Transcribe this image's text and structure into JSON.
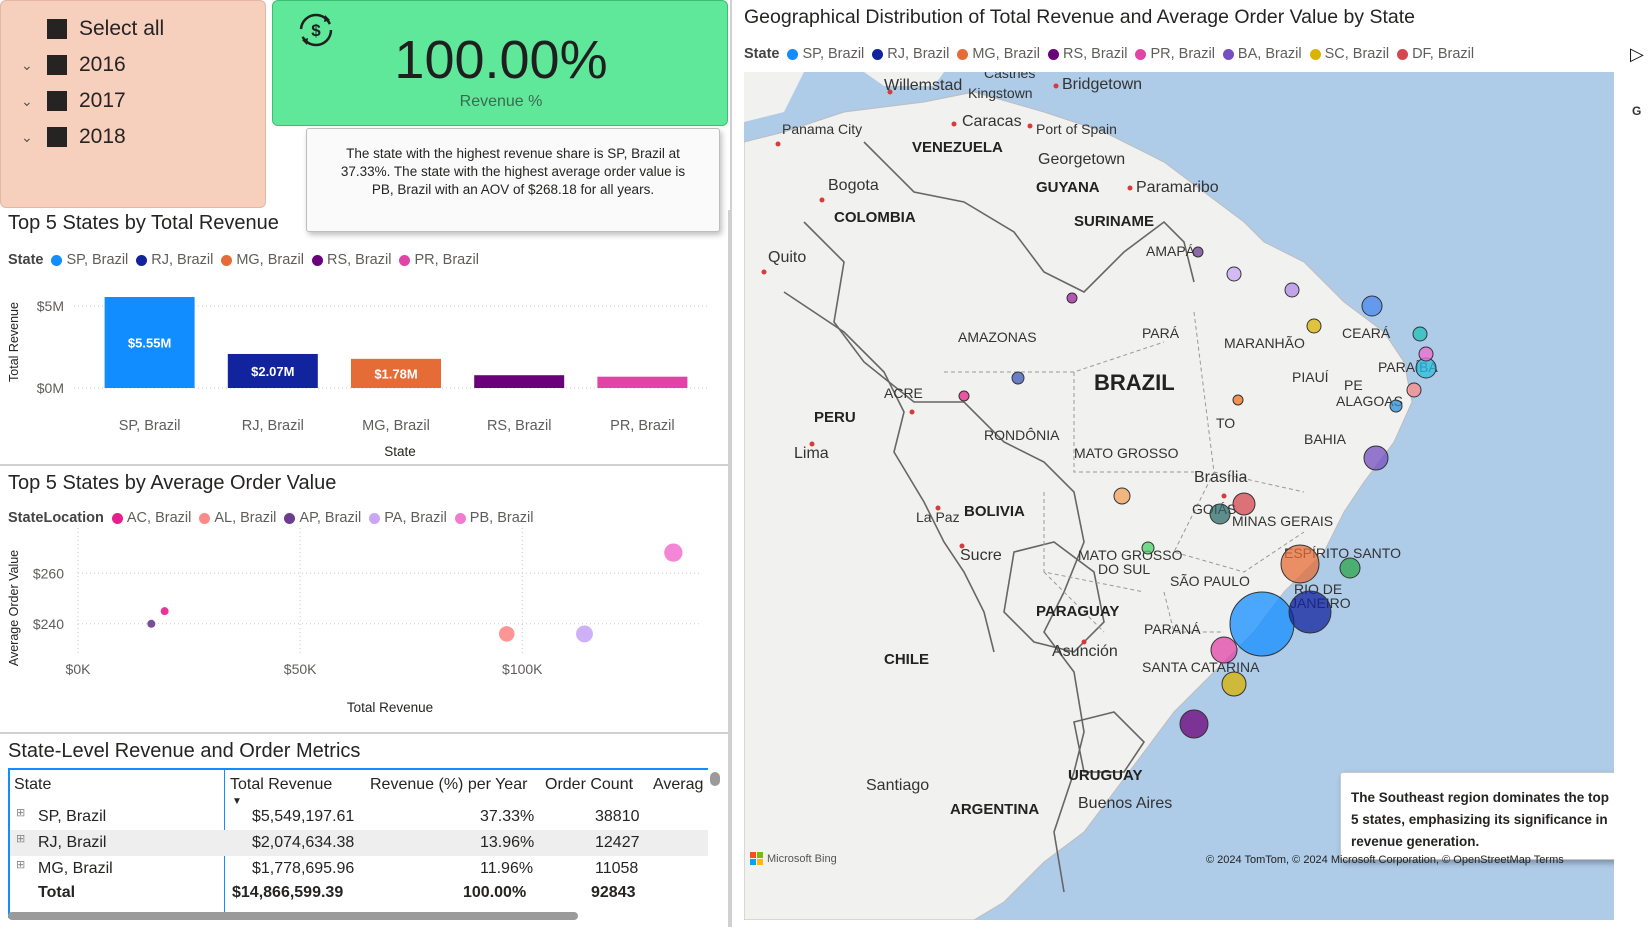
{
  "slicer": {
    "items": [
      {
        "label": "Select all",
        "expandable": false
      },
      {
        "label": "2016",
        "expandable": true
      },
      {
        "label": "2017",
        "expandable": true
      },
      {
        "label": "2018",
        "expandable": true
      }
    ]
  },
  "kpi": {
    "value": "100.00%",
    "label": "Revenue %",
    "icon": "currency-exchange-icon",
    "color": "#5fe89a"
  },
  "insight_top": "The state with the highest revenue share is SP, Brazil at 37.33%. The state with the highest average order value is PB, Brazil with an AOV of $268.18 for all years.",
  "bar_chart": {
    "title": "Top 5 States by Total Revenue",
    "legend_title": "State",
    "chart_data": {
      "type": "bar",
      "categories": [
        "SP, Brazil",
        "RJ, Brazil",
        "MG, Brazil",
        "RS, Brazil",
        "PR, Brazil"
      ],
      "values": [
        5549197.61,
        2074634.38,
        1778695.96,
        780000,
        690000
      ],
      "data_labels": [
        "$5.55M",
        "$2.07M",
        "$1.78M",
        "",
        ""
      ],
      "colors": [
        "#118dff",
        "#12239e",
        "#e66c37",
        "#6b007b",
        "#e044a7"
      ],
      "xlabel": "State",
      "ylabel": "Total Revenue",
      "yticks": [
        "$0M",
        "$5M"
      ],
      "ylim": [
        0,
        5500000
      ],
      "grid": true,
      "legend_position": "top-left"
    }
  },
  "scatter_chart": {
    "title": "Top 5 States by Average Order Value",
    "legend_title": "StateLocation",
    "chart_data": {
      "type": "scatter",
      "series": [
        {
          "name": "AC, Brazil",
          "x": 19500,
          "y": 245,
          "color": "#e81e8c"
        },
        {
          "name": "AL, Brazil",
          "x": 96500,
          "y": 236,
          "color": "#fd8a8a"
        },
        {
          "name": "AP, Brazil",
          "x": 16500,
          "y": 240,
          "color": "#6b3c8f"
        },
        {
          "name": "PA, Brazil",
          "x": 114000,
          "y": 236,
          "color": "#c9a7f6"
        },
        {
          "name": "PB, Brazil",
          "x": 134000,
          "y": 268.18,
          "color": "#f27ad0"
        }
      ],
      "xlabel": "Total Revenue",
      "ylabel": "Average Order Value",
      "xticks": [
        "$0K",
        "$50K",
        "$100K"
      ],
      "yticks": [
        "$240",
        "$260"
      ],
      "xlim": [
        0,
        140000
      ],
      "ylim": [
        232,
        270
      ],
      "grid": true,
      "legend_position": "top-left"
    }
  },
  "table": {
    "title": "State-Level Revenue and Order Metrics",
    "columns": [
      "State",
      "Total Revenue",
      "Revenue (%) per Year",
      "Order Count",
      "Averag"
    ],
    "rows": [
      {
        "state": "SP, Brazil",
        "revenue": "$5,549,197.61",
        "pct": "37.33%",
        "orders": "38810"
      },
      {
        "state": "RJ, Brazil",
        "revenue": "$2,074,634.38",
        "pct": "13.96%",
        "orders": "12427"
      },
      {
        "state": "MG, Brazil",
        "revenue": "$1,778,695.96",
        "pct": "11.96%",
        "orders": "11058"
      }
    ],
    "total": {
      "state": "Total",
      "revenue": "$14,866,599.39",
      "pct": "100.00%",
      "orders": "92843"
    },
    "expand_icon": "plus-square-icon"
  },
  "map": {
    "title": "Geographical Distribution of Total Revenue and Average Order Value by State",
    "legend_title": "State",
    "legend": [
      {
        "name": "SP, Brazil",
        "color": "#118dff"
      },
      {
        "name": "RJ, Brazil",
        "color": "#12239e"
      },
      {
        "name": "MG, Brazil",
        "color": "#e66c37"
      },
      {
        "name": "RS, Brazil",
        "color": "#6b007b"
      },
      {
        "name": "PR, Brazil",
        "color": "#e044a7"
      },
      {
        "name": "BA, Brazil",
        "color": "#744ec2"
      },
      {
        "name": "SC, Brazil",
        "color": "#d9b300"
      },
      {
        "name": "DF, Brazil",
        "color": "#d64550"
      }
    ],
    "legend_next_icon": "triangle-right-icon",
    "corner_label": "G",
    "place_labels": [
      "Castries",
      "Willemstad",
      "Kingstown",
      "Bridgetown",
      "Panama City",
      "Caracas",
      "Port of Spain",
      "VENEZUELA",
      "Georgetown",
      "Bogota",
      "GUYANA",
      "Paramaribo",
      "COLOMBIA",
      "SURINAME",
      "Quito",
      "AMAPÁ",
      "AMAZONAS",
      "PARÁ",
      "MARANHÃO",
      "CEARÁ",
      "BRAZIL",
      "PIAUÍ",
      "PARAÍBA",
      "ACRE",
      "PE",
      "ALAGOAS",
      "PERU",
      "TO",
      "RONDÔNIA",
      "BAHIA",
      "Lima",
      "MATO GROSSO",
      "Brasília",
      "GOIÁS",
      "La Paz",
      "BOLIVIA",
      "MINAS GERAIS",
      "Sucre",
      "ESPÍRITO SANTO",
      "MATO GROSSO",
      "DO SUL",
      "SÃO PAULO",
      "RIO DE",
      "JANEIRO",
      "PARAGUAY",
      "PARANÁ",
      "Asunción",
      "CHILE",
      "SANTA CATARINA",
      "Santiago",
      "URUGUAY",
      "ARGENTINA",
      "Buenos Aires"
    ],
    "insight": "The Southeast region dominates the top 5 states, emphasizing its significance in revenue generation.",
    "attribution": "© 2024 TomTom, © 2024 Microsoft Corporation, © OpenStreetMap  Terms",
    "bing_logo": "Microsoft Bing"
  }
}
